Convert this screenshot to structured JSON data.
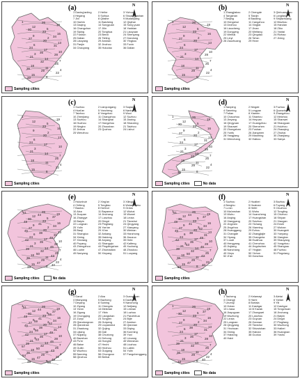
{
  "colors": {
    "region": "#f2c4dc",
    "stroke": "#6a6a6a",
    "nodata": "#ffffff",
    "highlight": "#ea9cc6"
  },
  "panels": [
    {
      "label": "(a)",
      "north": "N",
      "legend": [
        "Sampling cities"
      ],
      "cols": 3,
      "items": [
        "1 Daxing'anling",
        "2 Heihe",
        "3 Yichun",
        "4 Hegang",
        "5 Suihua",
        "6 Shuangyashan",
        "7 Jixi",
        "8 Qitaihe",
        "9 Mudanjiang",
        "10 Harbin",
        "11 Baicheng",
        "12 Qiqihar",
        "13 Daqing",
        "14 Songyuan",
        "15 Song yuan",
        "16 Changchun",
        "17 Jilin",
        "18 Yanbian",
        "19 Siping",
        "20 Tonghua",
        "21 Liaoyuan",
        "22 Fushun",
        "23 Benxi",
        "24 Shenyang",
        "25 Dalian",
        "26 Tieling",
        "27 Dandong",
        "28 Liaoyang",
        "29 Anshan",
        "30 Yingkou",
        "31 Panjin",
        "32 Jinzhou",
        "33 Fuxin",
        "34 Chaoyang",
        "35 Huludao",
        "36 Dalian"
      ]
    },
    {
      "label": "(b)",
      "north": "N",
      "legend": [
        "Sampling cities"
      ],
      "cols": 3,
      "items": [
        "1 Zhangjiakou",
        "2 Chengde",
        "3 Qinhuangdao",
        "4 Tangshan",
        "5 Tianjin",
        "6 Langfang",
        "7 Beijing",
        "8 Baoding",
        "9 Shijiazhuang",
        "10 Hengshui",
        "11 Cangzhou",
        "12 Binzhou",
        "13 Dezhou",
        "14 Xingtai",
        "15 Handan",
        "16 Liaocheng",
        "17 Jinan",
        "18 Zibo",
        "19 Dongying",
        "20 Weifang",
        "21 Yantai",
        "22 Weihai",
        "23 Qingdao",
        "24 Rizhao",
        "25 Linyi",
        "26 Tai'an",
        "27 Jining",
        "28 Zaozhuang",
        "29 Heze",
        ""
      ]
    },
    {
      "label": "(c)",
      "north": "N",
      "legend": [
        "Sampling cities"
      ],
      "cols": 3,
      "items": [
        "1 Xuzhou",
        "2 Lianyungang",
        "3 Suqian",
        "4 Huai'an",
        "5 Yancheng",
        "6 Nantong",
        "7 Taizhou",
        "8 Yangzhou",
        "9 Wuxi",
        "10 Zhenjiang",
        "11 Changzhou",
        "12 Suzhou",
        "13 Suzhou",
        "14 Shanghai",
        "15 Jiaxing",
        "16 Huzhou",
        "17 Hangzhou",
        "18 Shaoxing",
        "19 Ningbo",
        "20 Zhoushan",
        "21 Taizhou",
        "22 Jinhua",
        "23 Quzhou",
        "24 Lishui",
        "25 Wenzhou",
        "",
        ""
      ]
    },
    {
      "label": "(d)",
      "north": "N",
      "legend": [
        "Sampling cities",
        "No data"
      ],
      "cols": 3,
      "items": [
        "1 Nanping",
        "2 Ningde",
        "3 Fuzhou",
        "4 Sanming",
        "5 Longyan",
        "6 Quanzhou",
        "7 Putian",
        "8 Xiamen",
        "9 Zhangzhou",
        "10 Chaozhou",
        "11 Shantou",
        "12 Meizhou",
        "13 Jieyang",
        "14 Heyuan",
        "15 Shanwei",
        "16 Qingyuan",
        "17 Guangzhou",
        "18 Shaoguan",
        "19 Shaowei",
        "20 Shenzhen",
        "21 Huizhou",
        "22 Zhongshan",
        "23 Foshan",
        "24 Zhaoqing",
        "25 Yunfu",
        "26 Jiangmen",
        "27 Zhuhai",
        "28 Yangjiang",
        "29 Maoming",
        "30 Zhanjiang",
        "31 Wenchang",
        "32 Haikou",
        "33 Sanya",
        ""
      ]
    },
    {
      "label": "(e)",
      "north": "N",
      "legend": [
        "Sampling cities",
        "No data"
      ],
      "cols": 3,
      "items": [
        "1 Hulunbuir",
        "2 Xing'an",
        "3 Xilingol",
        "4 Chifeng",
        "5 Tongliao",
        "6 Wulanchabu",
        "7 Baotou",
        "8 Hohhot",
        "9 Ordos",
        "10 Alxa",
        "11 Bayannur",
        "12 Wuhai",
        "13 Jiuquan",
        "14 Jinchang",
        "15 Wuwei",
        "16 Zhangye",
        "17 Lanzhou",
        "18 Linxia",
        "19 Baiyin",
        "20 Dingxi",
        "21 Tianshui",
        "22 Longnan",
        "23 Pingliang",
        "24 Qingyang",
        "25 Yulin",
        "26 Yan'an",
        "27 Xianyang",
        "28 Baoji",
        "29 Xi'an",
        "30 Weinan",
        "31 Shangluo",
        "32 Ankang",
        "33 Hanzhong",
        "34 Xining",
        "35 Haidong",
        "36 Jiaozuo",
        "37 Xinxiang",
        "38 Anyang",
        "39 Hebi",
        "40 Puyang",
        "41 Shangqiu",
        "42 Kaifeng",
        "43 Zhengzhou",
        "44 Pingdingshan",
        "45 Xuchang",
        "46 Luohe",
        "47 Zhumadian",
        "48 Zhoukou",
        "49 Nanyang",
        "50 Xinyang",
        "51 Luoyang"
      ]
    },
    {
      "label": "(f)",
      "north": "N",
      "legend": [
        "Sampling cities"
      ],
      "cols": 3,
      "items": [
        "1 Suzhou",
        "2 Huaibei",
        "3 Bozhou",
        "4 Bengbu",
        "5 Huainan",
        "6 Fuyang",
        "7 Lu'an",
        "8 Hefei",
        "9 Chuzhou",
        "10 Ma'anshan",
        "11 Wuhu",
        "12 Tongling",
        "13 Wuhu",
        "14 Xuancheng",
        "15 Chizhou",
        "16 Anqing",
        "17 Huangshan",
        "18 Shiyan",
        "19 Xiangyang",
        "20 Suizhou",
        "21 Xiaogan",
        "22 Jingmen",
        "23 Yichang",
        "24 Enshi",
        "25 Jingzhou",
        "26 Xianning",
        "27 Wuhan",
        "28 Huanggang",
        "29 Ezhou",
        "30 Huangshi",
        "31 Changde",
        "32 Zhangjiajie",
        "33 Yueyang",
        "34 Yiyang",
        "35 Changsha",
        "36 Xiangtan",
        "37 Loudi",
        "38 Huaihua",
        "39 Shaoyang",
        "40 Hengyang",
        "41 Chenzhou",
        "42 Yongzhou",
        "43 Jiujiang",
        "44 Jingdezhen",
        "45 Shangrao",
        "46 Nanchang",
        "47 Yingtan",
        "48 Fuzhou",
        "49 Xinyu",
        "50 Yichun",
        "51 Pingxiang",
        "52 Ji'an",
        "53 Ganzhou",
        ""
      ]
    },
    {
      "label": "(g)",
      "north": "N",
      "legend": [
        "Sampling cities"
      ],
      "cols": 3,
      "items": [
        "1 Ganzi",
        "2 Aba",
        "3 Guangyuan",
        "4 Mianyang",
        "5 Bazhong",
        "6 Dazhou",
        "7 Deyang",
        "8 Suining",
        "9 Nanchong",
        "10 Ziyang",
        "11 Chengdu",
        "12 Neijiang",
        "13 Ya'an",
        "14 Meishan",
        "15 Leshan",
        "16 Zigong",
        "17 Yibin",
        "18 Luzhou",
        "19 Chongqing",
        "20 Liangshan",
        "21 Panzhihua",
        "22 Zunyi",
        "23 Tongren",
        "24 Bijie",
        "25 Qiandongnan",
        "26 Guiyang",
        "27 Anshun",
        "28 Qianxinan",
        "29 Liupanshui",
        "30 Qiannan",
        "31 Zhaotong",
        "32 Qujing",
        "33 Diqing",
        "34 Lijiang",
        "35 Dali",
        "36 Kunming",
        "37 Nujiang",
        "38 Chuxiong",
        "39 Yuxi",
        "40 Baoshan",
        "41 Dehong",
        "42 Lincang",
        "43 Pu'er",
        "44 Honghe",
        "45 Wenshan",
        "46 Baise",
        "47 Hechi",
        "48 Liuzhou",
        "49 Guilin",
        "50 Hezhou",
        "51 Laibin",
        "52 Wuzhou",
        "53 Guigang",
        "54 Yulin",
        "55 Nanning",
        "56 Chongzuo",
        "57 Fangchenggang",
        "58 Qinzhou",
        "59 Beihai",
        ""
      ]
    },
    {
      "label": "(h)",
      "north": "N",
      "legend": [
        "Sampling cities",
        "No data"
      ],
      "cols": 3,
      "items": [
        "1 Tacheng",
        "2 Kelamayi",
        "3 Aletai",
        "4 Changji",
        "5 Hami",
        "6 Yarlan",
        "7 Urumqi",
        "8 Bortala",
        "9 Yili",
        "10 Hotan",
        "11 Kashgar",
        "12 Kashgar",
        "13 Lhasa",
        "14 Ili Kazak",
        "15 Tongchuan",
        "16 Jiayuguan",
        "17 Zhongwei",
        "18 Jinchang",
        "19 Wuzhong",
        "20 Lanzhou",
        "21 Baiyin",
        "22 Linxia",
        "23 Guyuan",
        "24 Dingxi",
        "25 Longnan",
        "26 Gannan",
        "27 Pingliang",
        "28 Qingyang",
        "29 Tianshui",
        "30 Wuzhong",
        "31 Yinchuan",
        "32 Shizuishan",
        "33 Haibei",
        "34 Xining",
        "35 Hainan",
        "36 Huangnan",
        "37 Haidong",
        "38 Guoluo",
        "39 Yushu",
        "40 Haixi",
        ""
      ]
    }
  ]
}
